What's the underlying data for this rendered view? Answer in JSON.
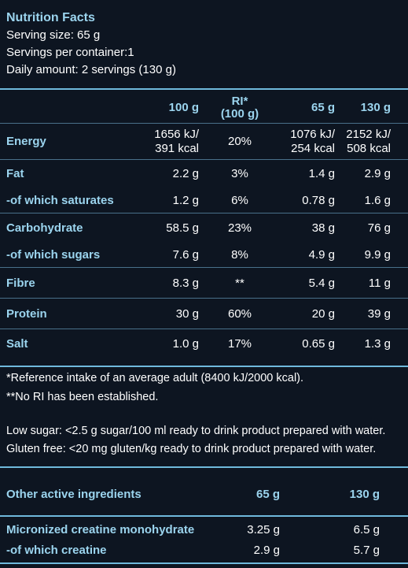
{
  "header": {
    "title": "Nutrition Facts",
    "serving_size": "Serving size: 65 g",
    "servings_per_container": "Servings per container:1",
    "daily_amount": "Daily amount: 2 servings (130 g)"
  },
  "nutrition_table": {
    "columns": [
      "100 g",
      "RI*",
      "(100 g)",
      "65 g",
      "130 g"
    ],
    "rows": [
      {
        "label": "Energy",
        "v100": [
          "1656 kJ/",
          "391 kcal"
        ],
        "ri": "20%",
        "v65": [
          "1076 kJ/",
          "254 kcal"
        ],
        "v130": [
          "2152 kJ/",
          "508 kcal"
        ]
      },
      {
        "label": "Fat",
        "v100": "2.2 g",
        "ri": "3%",
        "v65": "1.4 g",
        "v130": "2.9 g"
      },
      {
        "label": "-of which saturates",
        "v100": "1.2 g",
        "ri": "6%",
        "v65": "0.78 g",
        "v130": "1.6 g"
      },
      {
        "label": "Carbohydrate",
        "v100": "58.5 g",
        "ri": "23%",
        "v65": "38 g",
        "v130": "76 g"
      },
      {
        "label": "-of which sugars",
        "v100": "7.6 g",
        "ri": "8%",
        "v65": "4.9 g",
        "v130": "9.9 g"
      },
      {
        "label": "Fibre",
        "v100": "8.3 g",
        "ri": "**",
        "v65": "5.4 g",
        "v130": "11 g"
      },
      {
        "label": "Protein",
        "v100": "30 g",
        "ri": "60%",
        "v65": "20 g",
        "v130": "39 g"
      },
      {
        "label": "Salt",
        "v100": "1.0 g",
        "ri": "17%",
        "v65": "0.65 g",
        "v130": "1.3 g"
      }
    ]
  },
  "footnotes": {
    "ri_note": "*Reference intake of an average adult (8400 kJ/2000 kcal).",
    "no_ri_note": "**No RI has been established.",
    "low_sugar": "Low sugar: <2.5 g sugar/100 ml ready to drink product prepared with water.",
    "gluten_free": "Gluten free: <20 mg gluten/kg ready to drink product prepared with water."
  },
  "active_ingredients": {
    "heading": "Other active ingredients",
    "columns": [
      "65 g",
      "130 g"
    ],
    "rows": [
      {
        "label": "Micronized creatine monohydrate",
        "v65": "3.25 g",
        "v130": "6.5 g"
      },
      {
        "label": "-of which creatine",
        "v65": "2.9 g",
        "v130": "5.7 g"
      }
    ]
  },
  "colors": {
    "background": "#0d1521",
    "accent": "#9bd4ee",
    "rule": "#6fb9dc",
    "text": "#ffffff"
  }
}
